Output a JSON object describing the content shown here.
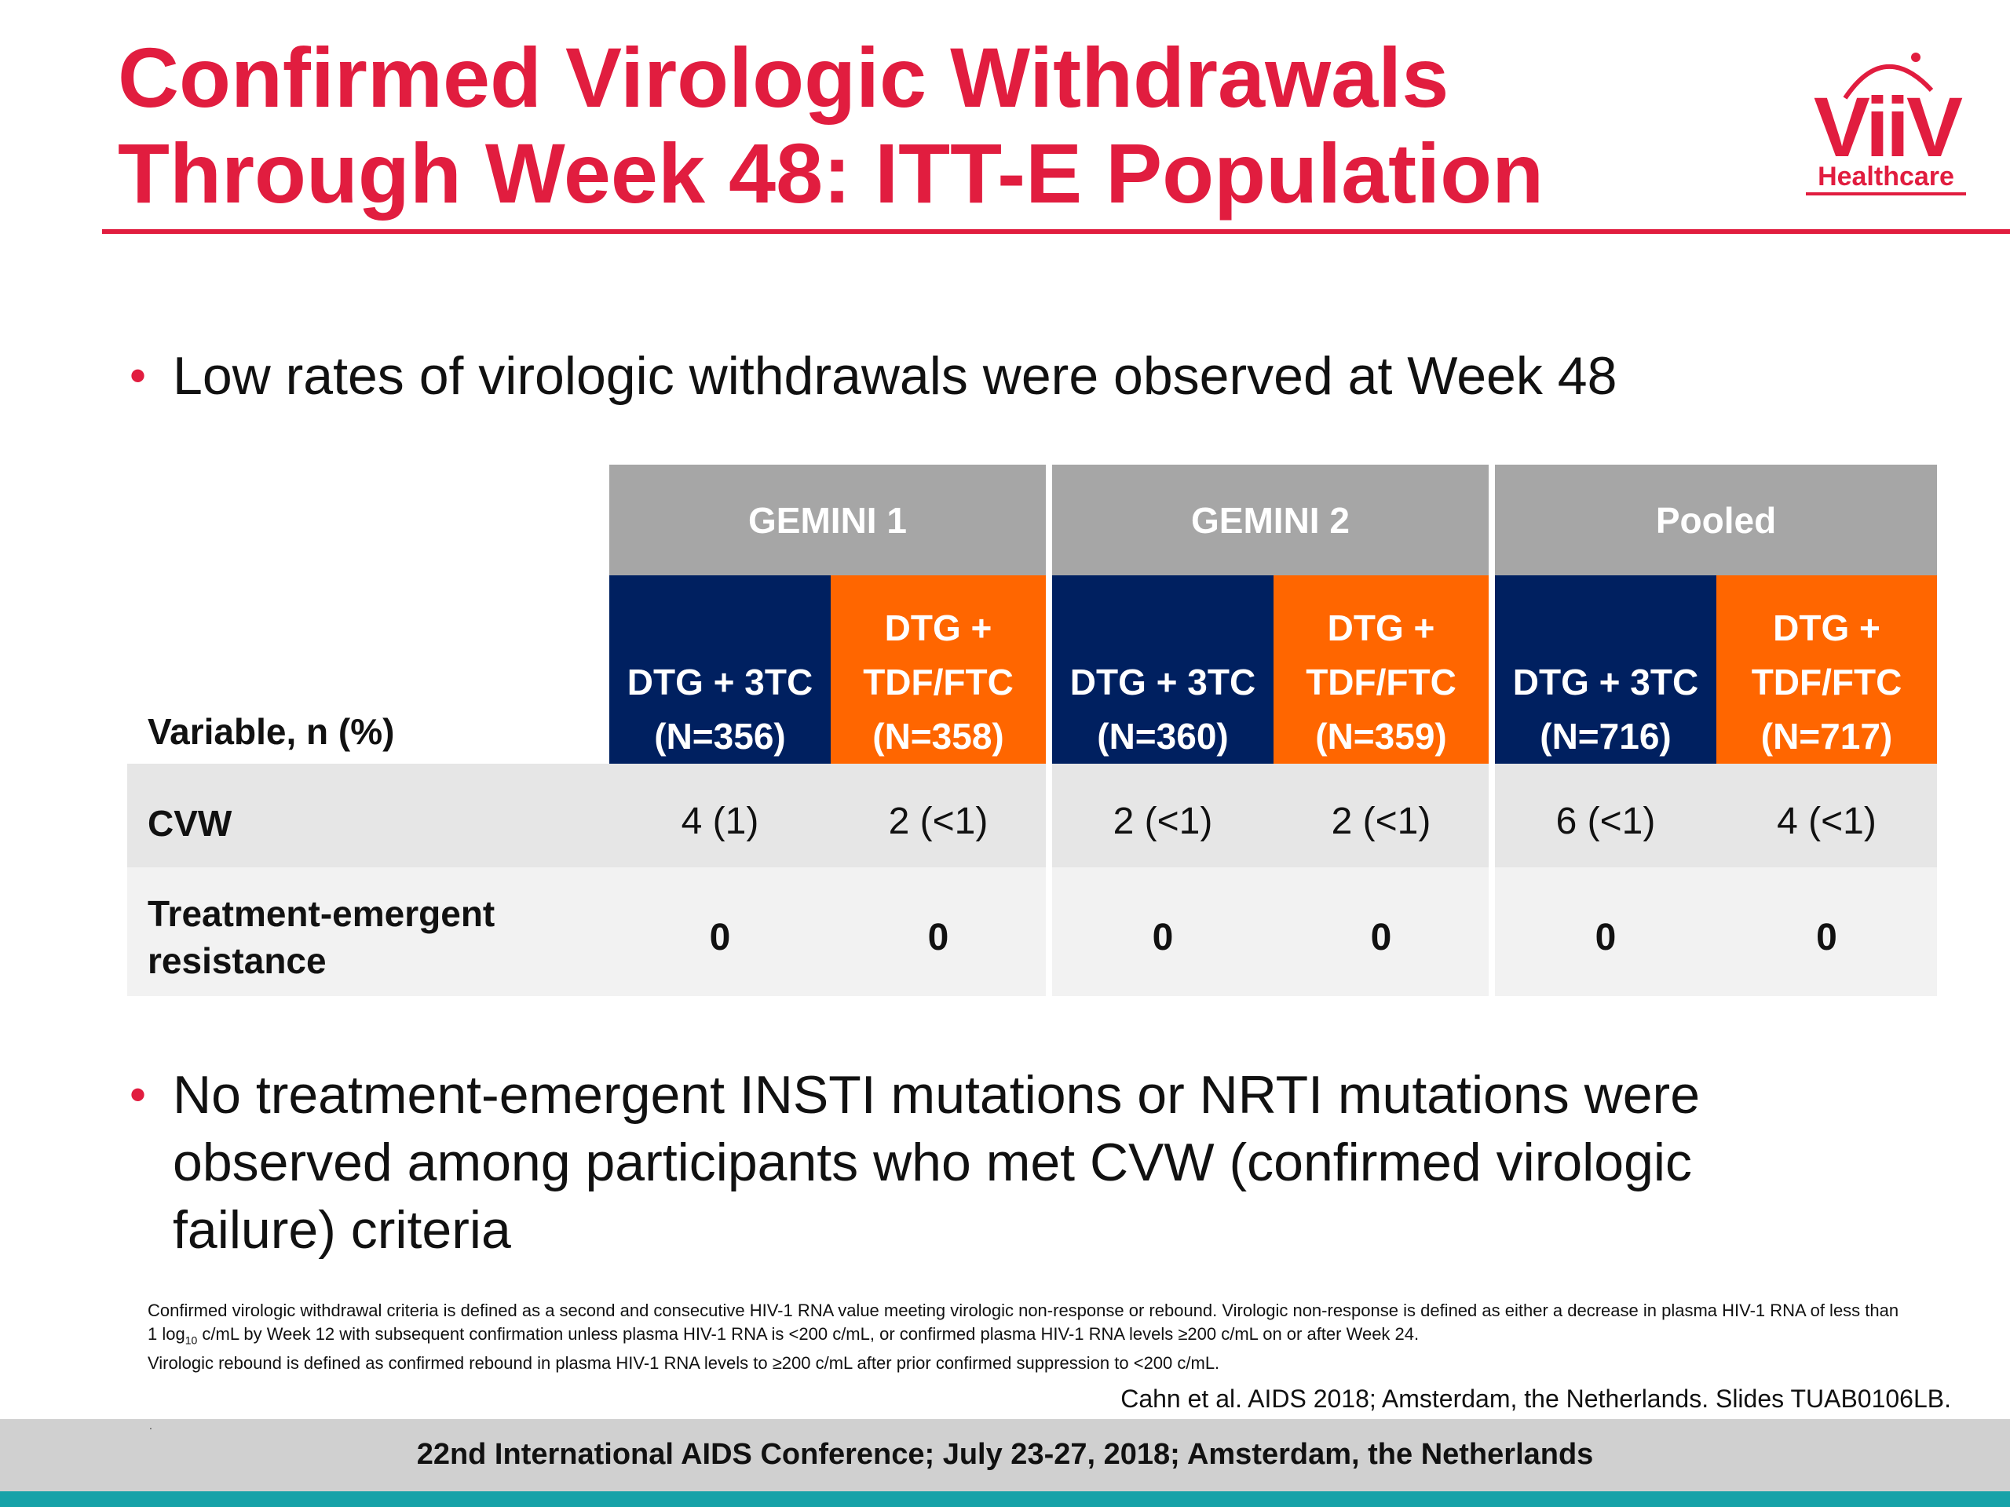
{
  "title": {
    "line1": "Confirmed Virologic Withdrawals",
    "line2": "Through Week 48: ITT-E Population"
  },
  "logo": {
    "wordmark": "ViiV",
    "sub": "Healthcare"
  },
  "bullets": [
    {
      "text": "Low rates of virologic withdrawals were observed at Week 48"
    },
    {
      "text": "No treatment-emergent INSTI mutations or NRTI mutations were observed among participants who met CVW (confirmed virologic failure) criteria"
    }
  ],
  "table": {
    "variable_header": "Variable, n (%)",
    "groups": [
      "GEMINI 1",
      "GEMINI 2",
      "Pooled"
    ],
    "arms": [
      {
        "line1": "",
        "line2": "DTG + 3TC",
        "line3": "(N=356)",
        "color": "#002060"
      },
      {
        "line1": "DTG +",
        "line2": "TDF/FTC",
        "line3": "(N=358)",
        "color": "#ff6600"
      },
      {
        "line1": "",
        "line2": "DTG + 3TC",
        "line3": "(N=360)",
        "color": "#002060"
      },
      {
        "line1": "DTG +",
        "line2": "TDF/FTC",
        "line3": "(N=359)",
        "color": "#ff6600"
      },
      {
        "line1": "",
        "line2": "DTG + 3TC",
        "line3": "(N=716)",
        "color": "#002060"
      },
      {
        "line1": "DTG +",
        "line2": "TDF/FTC",
        "line3": "(N=717)",
        "color": "#ff6600"
      }
    ],
    "rows": [
      {
        "label_line1": "CVW",
        "label_line2": "",
        "values": [
          "4 (1)",
          "2 (<1)",
          "2 (<1)",
          "2 (<1)",
          "6 (<1)",
          "4 (<1)"
        ]
      },
      {
        "label_line1": "Treatment-emergent",
        "label_line2": "resistance",
        "values": [
          "0",
          "0",
          "0",
          "0",
          "0",
          "0"
        ]
      }
    ]
  },
  "footnote": {
    "part1": "Confirmed virologic withdrawal criteria is defined as a second and consecutive HIV-1 RNA value meeting virologic non-response or rebound. Virologic non-response is defined as either a decrease in plasma HIV-1 RNA of less than 1 log",
    "sub": "10",
    "part2": " c/mL by Week 12 with subsequent confirmation unless plasma HIV-1 RNA is <200 c/mL, or confirmed plasma HIV-1 RNA levels ≥200 c/mL on or after Week 24.",
    "part3": "Virologic rebound is defined as confirmed rebound in plasma HIV-1 RNA levels to ≥200 c/mL after prior confirmed suppression to <200 c/mL."
  },
  "citation": "Cahn et al. AIDS 2018; Amsterdam, the Netherlands. Slides TUAB0106LB.",
  "footer": "22nd International AIDS Conference; July 23-27, 2018; Amsterdam, the Netherlands",
  "colors": {
    "accent_red": "#e11d3f",
    "navy": "#002060",
    "orange": "#ff6600",
    "header_gray": "#a6a6a6",
    "teal": "#17a2a8"
  }
}
